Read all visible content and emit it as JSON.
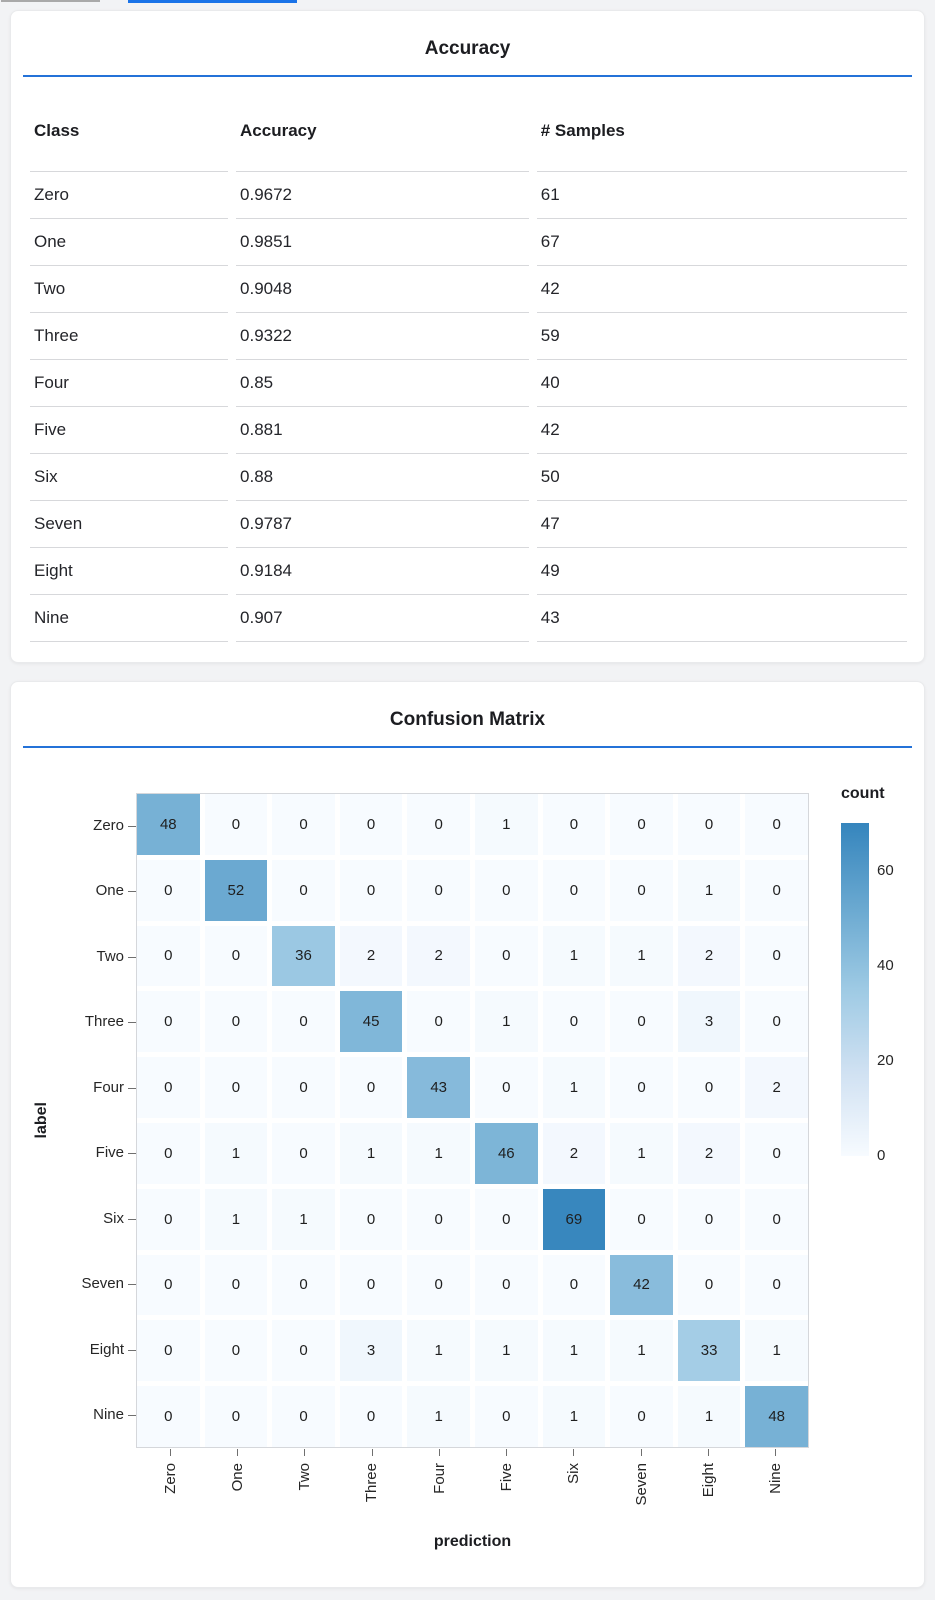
{
  "page": {
    "top_bars": {
      "gray_bar_color": "#a9a9a9",
      "blue_bar_color": "#1a73e8"
    },
    "accent_rule_color": "#2472d8"
  },
  "chart_data": [
    {
      "type": "table",
      "title": "Accuracy",
      "columns": [
        "Class",
        "Accuracy",
        "# Samples"
      ],
      "rows": [
        [
          "Zero",
          "0.9672",
          "61"
        ],
        [
          "One",
          "0.9851",
          "67"
        ],
        [
          "Two",
          "0.9048",
          "42"
        ],
        [
          "Three",
          "0.9322",
          "59"
        ],
        [
          "Four",
          "0.85",
          "40"
        ],
        [
          "Five",
          "0.881",
          "42"
        ],
        [
          "Six",
          "0.88",
          "50"
        ],
        [
          "Seven",
          "0.9787",
          "47"
        ],
        [
          "Eight",
          "0.9184",
          "49"
        ],
        [
          "Nine",
          "0.907",
          "43"
        ]
      ]
    },
    {
      "type": "heatmap",
      "title": "Confusion Matrix",
      "xlabel": "prediction",
      "ylabel": "label",
      "x_categories": [
        "Zero",
        "One",
        "Two",
        "Three",
        "Four",
        "Five",
        "Six",
        "Seven",
        "Eight",
        "Nine"
      ],
      "y_categories": [
        "Zero",
        "One",
        "Two",
        "Three",
        "Four",
        "Five",
        "Six",
        "Seven",
        "Eight",
        "Nine"
      ],
      "values": [
        [
          48,
          0,
          0,
          0,
          0,
          1,
          0,
          0,
          0,
          0
        ],
        [
          0,
          52,
          0,
          0,
          0,
          0,
          0,
          0,
          1,
          0
        ],
        [
          0,
          0,
          36,
          2,
          2,
          0,
          1,
          1,
          2,
          0
        ],
        [
          0,
          0,
          0,
          45,
          0,
          1,
          0,
          0,
          3,
          0
        ],
        [
          0,
          0,
          0,
          0,
          43,
          0,
          1,
          0,
          0,
          2
        ],
        [
          0,
          1,
          0,
          1,
          1,
          46,
          2,
          1,
          2,
          0
        ],
        [
          0,
          1,
          1,
          0,
          0,
          0,
          69,
          0,
          0,
          0
        ],
        [
          0,
          0,
          0,
          0,
          0,
          0,
          0,
          42,
          0,
          0
        ],
        [
          0,
          0,
          0,
          3,
          1,
          1,
          1,
          1,
          33,
          1
        ],
        [
          0,
          0,
          0,
          0,
          1,
          0,
          1,
          0,
          1,
          48
        ]
      ],
      "legend": {
        "title": "count",
        "ticks": [
          "60",
          "40",
          "20",
          "0"
        ],
        "tick_values": [
          60,
          40,
          20,
          0
        ],
        "domain": [
          0,
          70
        ]
      },
      "color_scheme": "blues",
      "color_anchors": [
        {
          "value": 0,
          "color": "#f7fbff"
        },
        {
          "value": 17.5,
          "color": "#d0e1f2"
        },
        {
          "value": 35,
          "color": "#9ecae4"
        },
        {
          "value": 52.5,
          "color": "#69a8d0"
        },
        {
          "value": 70,
          "color": "#3585bd"
        }
      ]
    }
  ]
}
